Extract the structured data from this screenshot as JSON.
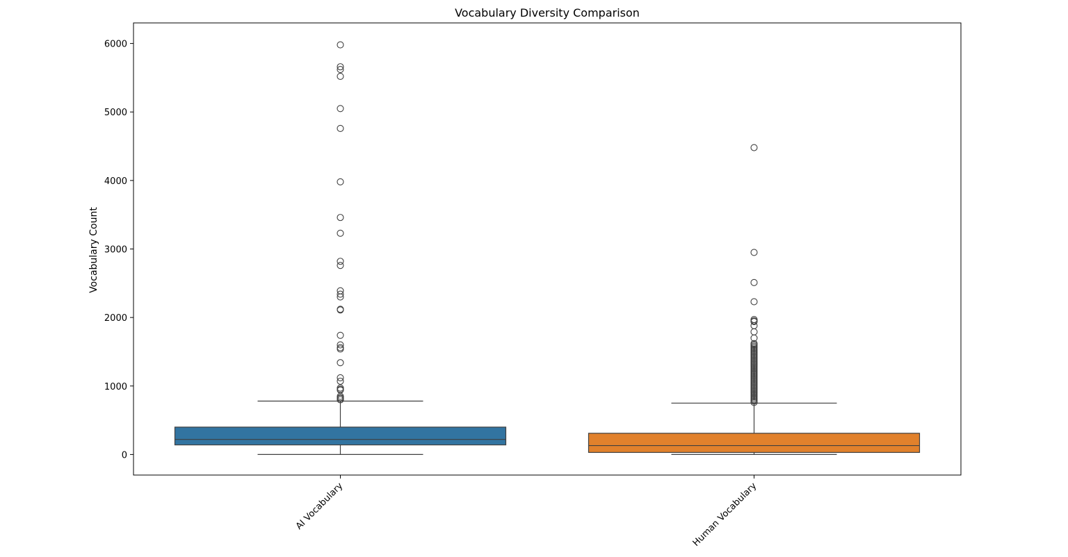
{
  "chart_data": {
    "type": "box",
    "title": "Vocabulary Diversity Comparison",
    "xlabel": "",
    "ylabel": "Vocabulary Count",
    "ylim": [
      -300,
      6300
    ],
    "yticks": [
      0,
      1000,
      2000,
      3000,
      4000,
      5000,
      6000
    ],
    "ytick_labels": [
      "0",
      "1000",
      "2000",
      "3000",
      "4000",
      "5000",
      "6000"
    ],
    "categories": [
      "AI Vocabulary",
      "Human Vocabulary"
    ],
    "grid": false,
    "series": [
      {
        "category": "AI Vocabulary",
        "color": "#3274a1",
        "whisker_low": 0,
        "q1": 140,
        "median": 220,
        "q3": 400,
        "whisker_high": 780,
        "outliers": [
          5980,
          5660,
          5620,
          5520,
          5050,
          4760,
          3980,
          3460,
          3230,
          2820,
          2760,
          2390,
          2340,
          2300,
          2120,
          2110,
          1740,
          1600,
          1560,
          1540,
          1340,
          1120,
          1070,
          970,
          950,
          940,
          850,
          830,
          820,
          800,
          800
        ]
      },
      {
        "category": "Human Vocabulary",
        "color": "#e1812c",
        "whisker_low": 0,
        "q1": 30,
        "median": 130,
        "q3": 310,
        "whisker_high": 750,
        "outliers": [
          4480,
          2950,
          2510,
          2230,
          1970,
          1950,
          1940,
          1880,
          1790,
          1700,
          1620,
          1600,
          1580,
          1560,
          1540,
          1520,
          1500,
          1480,
          1460,
          1440,
          1420,
          1400,
          1380,
          1360,
          1340,
          1320,
          1300,
          1280,
          1260,
          1240,
          1220,
          1200,
          1180,
          1160,
          1140,
          1120,
          1100,
          1080,
          1060,
          1040,
          1020,
          1000,
          980,
          960,
          940,
          920,
          900,
          880,
          860,
          840,
          820,
          800,
          780,
          760
        ]
      }
    ]
  }
}
